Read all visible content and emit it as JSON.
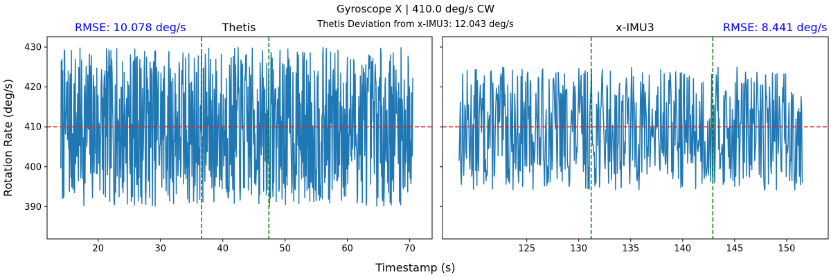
{
  "figure": {
    "suptitle": "Gyroscope X | 410.0 deg/s CW",
    "subtitle": "Thetis Deviation from x-IMU3: 12.043 deg/s",
    "xlabel": "Timestamp (s)",
    "ylabel": "Rotation Rate (deg/s)"
  },
  "chart_data": [
    {
      "type": "line",
      "title": "Thetis",
      "rmse_label": "RMSE: 10.078 deg/s",
      "xlim": [
        11.8,
        73.6
      ],
      "ylim": [
        381.9,
        432.6
      ],
      "xticks": [
        20,
        30,
        40,
        50,
        60,
        70
      ],
      "yticks": [
        390,
        400,
        410,
        420,
        430
      ],
      "reference_line": {
        "y": 410,
        "color": "#d62728",
        "style": "dashed"
      },
      "vlines": [
        {
          "x": 36.6,
          "color": "#008000"
        },
        {
          "x": 47.4,
          "color": "#008000"
        }
      ],
      "series": [
        {
          "color": "#1f77b4",
          "x_start": 14.0,
          "x_end": 70.5,
          "n": 900,
          "center": 410,
          "amplitude": 20,
          "seed": 7
        }
      ]
    },
    {
      "type": "line",
      "title": "x-IMU3",
      "rmse_label": "RMSE: 8.441 deg/s",
      "xlim": [
        116.9,
        154.0
      ],
      "ylim": [
        381.9,
        432.6
      ],
      "xticks": [
        125,
        130,
        135,
        140,
        145,
        150
      ],
      "yticks": [
        390,
        400,
        410,
        420,
        430
      ],
      "reference_line": {
        "y": 410,
        "color": "#d62728",
        "style": "dashed"
      },
      "vlines": [
        {
          "x": 131.2,
          "color": "#008000"
        },
        {
          "x": 142.9,
          "color": "#008000"
        }
      ],
      "series": [
        {
          "color": "#1f77b4",
          "x_start": 118.5,
          "x_end": 151.5,
          "n": 600,
          "center": 409.5,
          "amplitude": 15.5,
          "seed": 13
        }
      ]
    }
  ]
}
